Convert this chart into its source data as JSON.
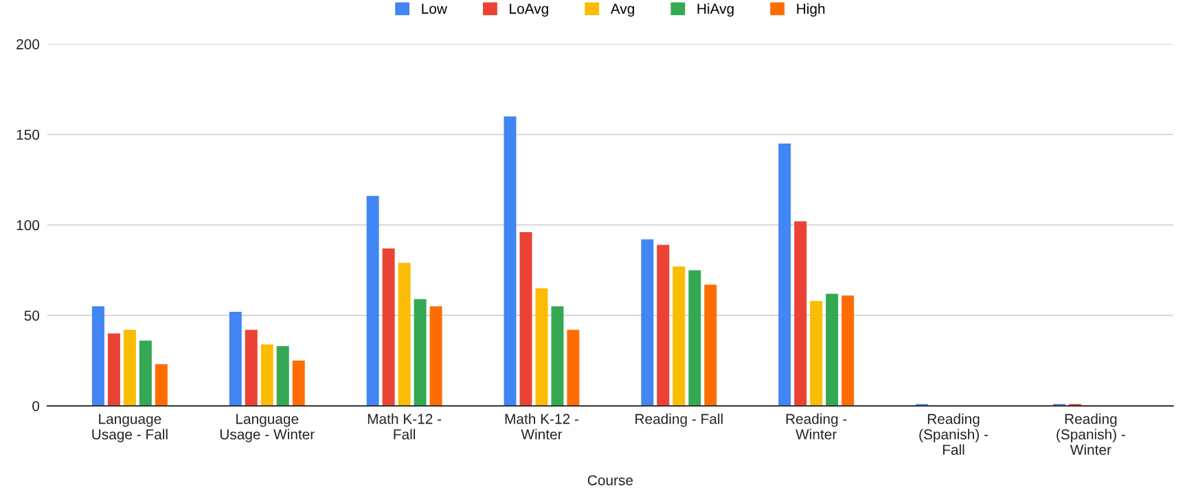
{
  "chart_data": {
    "type": "bar",
    "xlabel": "Course",
    "categories": [
      "Language\nUsage - Fall",
      "Language\nUsage - Winter",
      "Math K-12 -\nFall",
      "Math K-12 -\nWinter",
      "Reading - Fall",
      "Reading -\nWinter",
      "Reading\n(Spanish) -\nFall",
      "Reading\n(Spanish) -\nWinter"
    ],
    "series": [
      {
        "name": "Low",
        "color": "#4285f4",
        "values": [
          55,
          52,
          116,
          160,
          92,
          145,
          1,
          1
        ]
      },
      {
        "name": "LoAvg",
        "color": "#ea4335",
        "values": [
          40,
          42,
          87,
          96,
          89,
          102,
          0,
          1
        ]
      },
      {
        "name": "Avg",
        "color": "#fbbc04",
        "values": [
          42,
          34,
          79,
          65,
          77,
          58,
          0,
          0
        ]
      },
      {
        "name": "HiAvg",
        "color": "#34a853",
        "values": [
          36,
          33,
          59,
          55,
          75,
          62,
          0,
          0
        ]
      },
      {
        "name": "High",
        "color": "#ff6d01",
        "values": [
          23,
          25,
          55,
          42,
          67,
          61,
          0,
          0
        ]
      }
    ],
    "ylim": [
      0,
      200
    ],
    "yticks": [
      0,
      50,
      100,
      150,
      200
    ],
    "grid": "y",
    "legend": "top"
  }
}
